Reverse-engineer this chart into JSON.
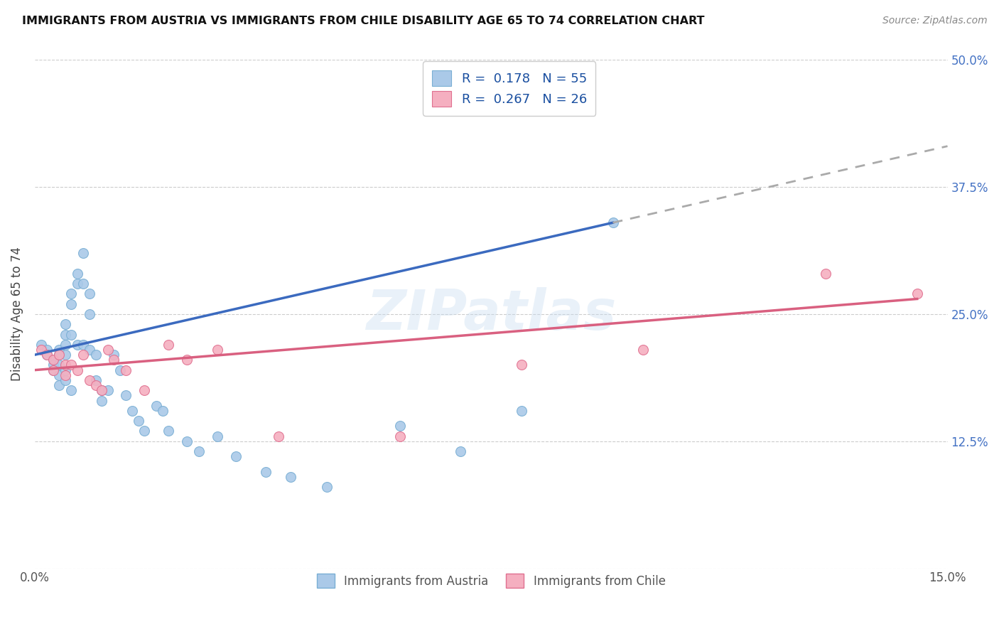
{
  "title": "IMMIGRANTS FROM AUSTRIA VS IMMIGRANTS FROM CHILE DISABILITY AGE 65 TO 74 CORRELATION CHART",
  "source": "Source: ZipAtlas.com",
  "ylabel": "Disability Age 65 to 74",
  "xlim": [
    0.0,
    0.15
  ],
  "ylim": [
    0.0,
    0.5
  ],
  "austria_color": "#aac9e8",
  "austria_edge": "#7aafd4",
  "chile_color": "#f5afc0",
  "chile_edge": "#e07090",
  "austria_line_color": "#3b6abf",
  "chile_line_color": "#d96080",
  "trendline_ext_color": "#aaaaaa",
  "R_austria": 0.178,
  "N_austria": 55,
  "R_chile": 0.267,
  "N_chile": 26,
  "austria_scatter_x": [
    0.001,
    0.002,
    0.002,
    0.003,
    0.003,
    0.003,
    0.004,
    0.004,
    0.004,
    0.004,
    0.004,
    0.005,
    0.005,
    0.005,
    0.005,
    0.005,
    0.005,
    0.006,
    0.006,
    0.006,
    0.006,
    0.007,
    0.007,
    0.007,
    0.008,
    0.008,
    0.008,
    0.009,
    0.009,
    0.009,
    0.01,
    0.01,
    0.011,
    0.011,
    0.012,
    0.013,
    0.014,
    0.015,
    0.016,
    0.017,
    0.018,
    0.02,
    0.021,
    0.022,
    0.025,
    0.027,
    0.03,
    0.033,
    0.038,
    0.042,
    0.048,
    0.06,
    0.07,
    0.08,
    0.095
  ],
  "austria_scatter_y": [
    0.22,
    0.215,
    0.21,
    0.205,
    0.2,
    0.195,
    0.215,
    0.21,
    0.2,
    0.19,
    0.18,
    0.24,
    0.23,
    0.22,
    0.21,
    0.195,
    0.185,
    0.27,
    0.26,
    0.23,
    0.175,
    0.29,
    0.28,
    0.22,
    0.31,
    0.28,
    0.22,
    0.27,
    0.25,
    0.215,
    0.21,
    0.185,
    0.175,
    0.165,
    0.175,
    0.21,
    0.195,
    0.17,
    0.155,
    0.145,
    0.135,
    0.16,
    0.155,
    0.135,
    0.125,
    0.115,
    0.13,
    0.11,
    0.095,
    0.09,
    0.08,
    0.14,
    0.115,
    0.155,
    0.34
  ],
  "chile_scatter_x": [
    0.001,
    0.002,
    0.003,
    0.003,
    0.004,
    0.005,
    0.005,
    0.006,
    0.007,
    0.008,
    0.009,
    0.01,
    0.011,
    0.012,
    0.013,
    0.015,
    0.018,
    0.022,
    0.025,
    0.03,
    0.04,
    0.06,
    0.08,
    0.1,
    0.13,
    0.145
  ],
  "chile_scatter_y": [
    0.215,
    0.21,
    0.205,
    0.195,
    0.21,
    0.2,
    0.19,
    0.2,
    0.195,
    0.21,
    0.185,
    0.18,
    0.175,
    0.215,
    0.205,
    0.195,
    0.175,
    0.22,
    0.205,
    0.215,
    0.13,
    0.13,
    0.2,
    0.215,
    0.29,
    0.27
  ],
  "background_color": "#ffffff",
  "grid_color": "#cccccc"
}
